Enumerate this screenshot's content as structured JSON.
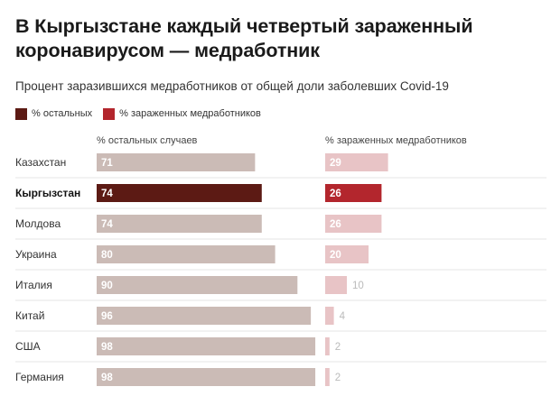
{
  "chart_data": {
    "type": "bar",
    "title": "В Кыргызстане каждый четвертый зараженный коронавирусом — медработник",
    "subtitle": "Процент заразившихся медработников от общей доли заболевших Covid-19",
    "legend": [
      {
        "label": "% остальных",
        "color": "#5c1a14"
      },
      {
        "label": "% зараженных медработников",
        "color": "#b3262d"
      }
    ],
    "categories": [
      "Казахстан",
      "Кыргызстан",
      "Молдова",
      "Украина",
      "Италия",
      "Китай",
      "США",
      "Германия"
    ],
    "highlight": "Кыргызстан",
    "series": [
      {
        "name": "% остальных случаев",
        "values": [
          71,
          74,
          74,
          80,
          90,
          96,
          98,
          98
        ],
        "color": "#cbbbb6",
        "highlight_color": "#5c1a14"
      },
      {
        "name": "% зараженных медработников",
        "values": [
          29,
          26,
          26,
          20,
          10,
          4,
          2,
          2
        ],
        "color": "#e8c4c6",
        "highlight_color": "#b3262d"
      }
    ],
    "xlim": [
      0,
      100
    ],
    "grid": false,
    "legend_position": "top-left"
  }
}
